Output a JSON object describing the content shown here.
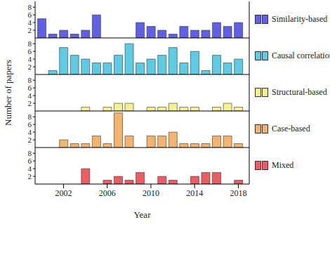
{
  "chart_data": [
    {
      "type": "bar",
      "x": [
        2000,
        2001,
        2002,
        2003,
        2004,
        2005,
        2006,
        2007,
        2008,
        2009,
        2010,
        2011,
        2012,
        2013,
        2014,
        2015,
        2016,
        2017,
        2018
      ],
      "series": [
        {
          "name": "Similarity-based",
          "color": "#5f5fe8",
          "values": [
            5,
            1,
            2,
            1,
            2,
            6,
            null,
            null,
            null,
            4,
            3,
            2,
            1,
            3,
            2,
            2,
            4,
            3,
            4
          ]
        }
      ],
      "xlim": [
        1999.4,
        2019
      ],
      "xticks": [
        2002,
        2006,
        2010,
        2014,
        2018
      ],
      "ylim": [
        0,
        9.5
      ],
      "yticks": [
        2,
        4,
        6,
        8
      ],
      "tick_labels": "y"
    },
    {
      "type": "bar",
      "x": [
        2000,
        2001,
        2002,
        2003,
        2004,
        2005,
        2006,
        2007,
        2008,
        2009,
        2010,
        2011,
        2012,
        2013,
        2014,
        2015,
        2016,
        2017,
        2018
      ],
      "series": [
        {
          "name": "Causal correlation",
          "color": "#5ccbe3",
          "values": [
            null,
            1,
            7,
            5,
            4,
            3,
            3,
            5,
            8,
            3,
            4,
            5,
            7,
            3,
            6,
            1,
            5,
            3,
            4
          ]
        }
      ],
      "xlim": [
        1999.4,
        2019
      ],
      "xticks": [
        2002,
        2006,
        2010,
        2014,
        2018
      ],
      "ylim": [
        0,
        9.5
      ],
      "yticks": [
        2,
        4,
        6,
        8
      ],
      "tick_labels": "y"
    },
    {
      "type": "bar",
      "x": [
        2000,
        2001,
        2002,
        2003,
        2004,
        2005,
        2006,
        2007,
        2008,
        2009,
        2010,
        2011,
        2012,
        2013,
        2014,
        2015,
        2016,
        2017,
        2018
      ],
      "series": [
        {
          "name": "Structural-based",
          "color": "#f7f08e",
          "values": [
            null,
            null,
            null,
            null,
            1,
            null,
            1,
            2,
            2,
            null,
            1,
            1,
            2,
            1,
            1,
            null,
            1,
            2,
            1
          ]
        }
      ],
      "xlim": [
        1999.4,
        2019
      ],
      "xticks": [
        2002,
        2006,
        2010,
        2014,
        2018
      ],
      "ylim": [
        0,
        9.5
      ],
      "yticks": [
        2,
        4,
        6,
        8
      ],
      "tick_labels": "y",
      "ylabel": "Number of papers"
    },
    {
      "type": "bar",
      "x": [
        2000,
        2001,
        2002,
        2003,
        2004,
        2005,
        2006,
        2007,
        2008,
        2009,
        2010,
        2011,
        2012,
        2013,
        2014,
        2015,
        2016,
        2017,
        2018
      ],
      "series": [
        {
          "name": "Case-based",
          "color": "#f5b36e",
          "values": [
            null,
            null,
            2,
            1,
            1,
            3,
            1,
            9,
            3,
            null,
            3,
            3,
            4,
            1,
            1,
            1,
            3,
            3,
            1
          ]
        }
      ],
      "xlim": [
        1999.4,
        2019
      ],
      "xticks": [
        2002,
        2006,
        2010,
        2014,
        2018
      ],
      "ylim": [
        0,
        9.5
      ],
      "yticks": [
        2,
        4,
        6,
        8
      ],
      "tick_labels": "y"
    },
    {
      "type": "bar",
      "x": [
        2000,
        2001,
        2002,
        2003,
        2004,
        2005,
        2006,
        2007,
        2008,
        2009,
        2010,
        2011,
        2012,
        2013,
        2014,
        2015,
        2016,
        2017,
        2018
      ],
      "series": [
        {
          "name": "Mixed",
          "color": "#ee5c62",
          "values": [
            null,
            null,
            null,
            null,
            4,
            null,
            1,
            2,
            1,
            3,
            null,
            2,
            1,
            null,
            2,
            3,
            3,
            null,
            1
          ]
        }
      ],
      "xlim": [
        1999.4,
        2019
      ],
      "xticks": [
        2002,
        2006,
        2010,
        2014,
        2018
      ],
      "ylim": [
        0,
        9.5
      ],
      "yticks": [
        2,
        4,
        6,
        8
      ],
      "xlabel": "Year"
    }
  ]
}
